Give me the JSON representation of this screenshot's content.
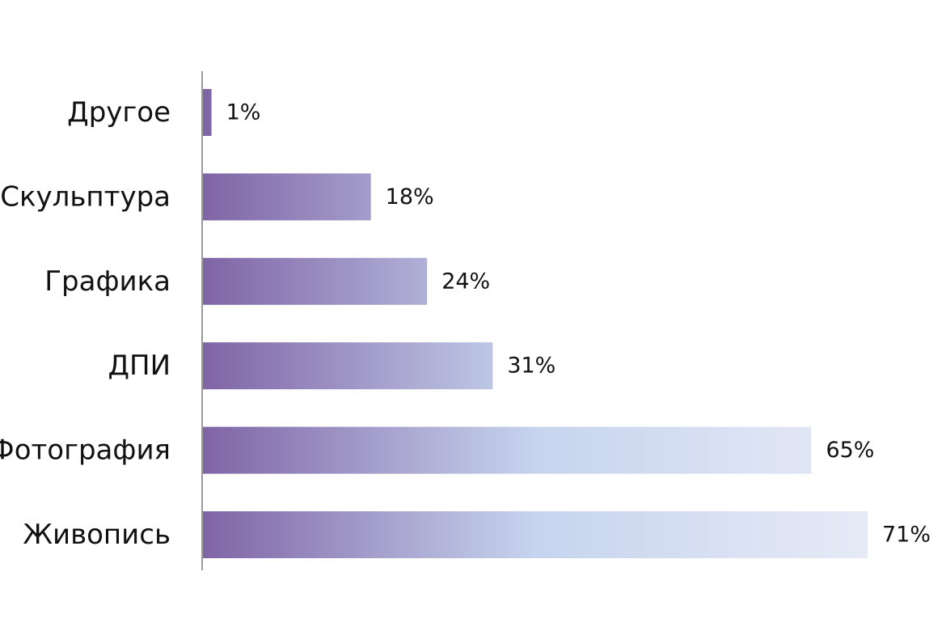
{
  "chart_data": {
    "type": "bar",
    "orientation": "horizontal",
    "categories": [
      "Другое",
      "Скульптура",
      "Графика",
      "ДПИ",
      "Фотография",
      "Живопись"
    ],
    "values": [
      1,
      18,
      24,
      31,
      65,
      71
    ],
    "value_labels": [
      "1%",
      "18%",
      "24%",
      "31%",
      "65%",
      "71%"
    ],
    "value_unit": "%",
    "xlim": [
      0,
      71
    ],
    "grid": false,
    "legend": "none",
    "bar_gradient": [
      "#7f64a6",
      "#c6d4ee",
      "#e6eaf6"
    ],
    "axis_color": "#9a9a9a",
    "text_color": "#111111"
  }
}
